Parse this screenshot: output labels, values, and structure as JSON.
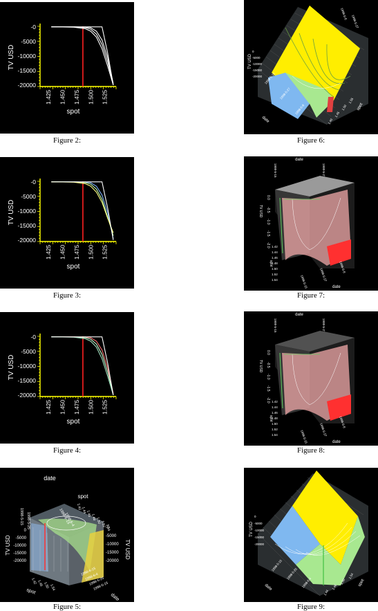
{
  "figures": [
    {
      "caption": "Figure 2:",
      "kind": "2d",
      "chart_data": {
        "type": "line",
        "xlabel": "spot",
        "ylabel": "TV USD",
        "xticks": [
          "1.425",
          "1.450",
          "1.475",
          "1.500",
          "1.525"
        ],
        "yticks": [
          "-0",
          "-5000",
          "-10000",
          "-15000",
          "-20000"
        ],
        "xlim": [
          1.41,
          1.545
        ],
        "ylim": [
          -20500,
          200
        ],
        "strike": 1.486,
        "series_colors": [
          "#ffffff",
          "#ffffff",
          "#ffffff",
          "#ffffff"
        ],
        "strike_color": "#ff2020",
        "axis_color": "#ffff00",
        "series": [
          {
            "x": [
              1.43,
              1.45,
              1.47,
              1.49,
              1.5,
              1.51,
              1.52,
              1.53,
              1.54
            ],
            "y": [
              0,
              0,
              0,
              -50,
              -300,
              -1500,
              -4500,
              -10500,
              -19500
            ]
          },
          {
            "x": [
              1.43,
              1.45,
              1.47,
              1.49,
              1.5,
              1.51,
              1.52,
              1.53,
              1.54
            ],
            "y": [
              0,
              0,
              -30,
              -250,
              -800,
              -2500,
              -6000,
              -12000,
              -20000
            ]
          },
          {
            "x": [
              1.43,
              1.45,
              1.47,
              1.49,
              1.5,
              1.51,
              1.52,
              1.53,
              1.54
            ],
            "y": [
              0,
              -10,
              -120,
              -600,
              -1500,
              -3500,
              -7500,
              -13500,
              -20000
            ]
          },
          {
            "x": [
              1.43,
              1.45,
              1.47,
              1.49,
              1.5,
              1.51,
              1.52,
              1.53,
              1.54
            ],
            "y": [
              0,
              0,
              0,
              0,
              0,
              0,
              0,
              -9000,
              -20000
            ]
          }
        ]
      }
    },
    {
      "caption": "Figure 3:",
      "kind": "2d",
      "chart_data": {
        "type": "line",
        "xlabel": "spot",
        "ylabel": "TV USD",
        "xticks": [
          "1.425",
          "1.450",
          "1.475",
          "1.500",
          "1.525"
        ],
        "yticks": [
          "-0",
          "-5000",
          "-10000",
          "-15000",
          "-20000"
        ],
        "xlim": [
          1.41,
          1.545
        ],
        "ylim": [
          -20500,
          200
        ],
        "strike": 1.486,
        "series_colors": [
          "#7fb3ff",
          "#c8ffb0",
          "#ffff80",
          "#ffffff"
        ],
        "strike_color": "#ff2020",
        "axis_color": "#ffff00",
        "series": [
          {
            "x": [
              1.43,
              1.45,
              1.47,
              1.49,
              1.5,
              1.51,
              1.52,
              1.53,
              1.54
            ],
            "y": [
              0,
              0,
              0,
              -50,
              -300,
              -1500,
              -4500,
              -10500,
              -19500
            ]
          },
          {
            "x": [
              1.43,
              1.45,
              1.47,
              1.49,
              1.5,
              1.51,
              1.52,
              1.53,
              1.54
            ],
            "y": [
              0,
              0,
              -30,
              -250,
              -800,
              -2500,
              -6000,
              -12000,
              -18500
            ]
          },
          {
            "x": [
              1.43,
              1.45,
              1.47,
              1.49,
              1.5,
              1.51,
              1.52,
              1.53,
              1.54
            ],
            "y": [
              0,
              -10,
              -120,
              -600,
              -1500,
              -3500,
              -7000,
              -12500,
              -17500
            ]
          },
          {
            "x": [
              1.43,
              1.45,
              1.47,
              1.49,
              1.5,
              1.51,
              1.52,
              1.53,
              1.54
            ],
            "y": [
              0,
              0,
              0,
              0,
              0,
              0,
              0,
              -9000,
              -20000
            ]
          }
        ]
      }
    },
    {
      "caption": "Figure 4:",
      "kind": "2d",
      "chart_data": {
        "type": "line",
        "xlabel": "spot",
        "ylabel": "TV USD",
        "xticks": [
          "1.425",
          "1.450",
          "1.475",
          "1.500",
          "1.525"
        ],
        "yticks": [
          "-0",
          "-5000",
          "-10000",
          "-15000",
          "-20000"
        ],
        "xlim": [
          1.41,
          1.545
        ],
        "ylim": [
          -20500,
          200
        ],
        "strike": 1.486,
        "series_colors": [
          "#ff7070",
          "#c8ffd0",
          "#a0e0c0",
          "#ffffff"
        ],
        "strike_color": "#ff2020",
        "axis_color": "#ffff00",
        "series": [
          {
            "x": [
              1.43,
              1.45,
              1.47,
              1.49,
              1.5,
              1.51,
              1.52,
              1.53,
              1.54
            ],
            "y": [
              0,
              0,
              0,
              -50,
              -300,
              -1500,
              -4500,
              -10500,
              -19500
            ]
          },
          {
            "x": [
              1.43,
              1.45,
              1.47,
              1.49,
              1.5,
              1.51,
              1.52,
              1.53,
              1.54
            ],
            "y": [
              0,
              0,
              -30,
              -250,
              -800,
              -2500,
              -6000,
              -12000,
              -20000
            ]
          },
          {
            "x": [
              1.43,
              1.45,
              1.47,
              1.49,
              1.5,
              1.51,
              1.52,
              1.53,
              1.54
            ],
            "y": [
              0,
              -10,
              -120,
              -600,
              -1500,
              -3500,
              -7500,
              -13500,
              -20000
            ]
          },
          {
            "x": [
              1.43,
              1.45,
              1.47,
              1.49,
              1.5,
              1.51,
              1.52,
              1.53,
              1.54
            ],
            "y": [
              0,
              0,
              0,
              0,
              0,
              0,
              0,
              -9000,
              -20000
            ]
          }
        ]
      }
    },
    {
      "caption": "Figure 5:",
      "kind": "3d-box",
      "labels": {
        "date": "date",
        "spot": "spot",
        "tv_left": "TV USD",
        "tv_right": "TV USD",
        "spot_bottom": "spot",
        "date_bottom": "date",
        "yticks": [
          "0",
          "-5000",
          "-10000",
          "-15000",
          "-20000"
        ],
        "yticks_right": [
          "-0",
          "-5000",
          "-10000",
          "-15000",
          "-20000"
        ],
        "dates_top": [
          "1998-5-15",
          "1998-5-25"
        ],
        "dates_top2": [
          "1998-6-15",
          "1998-6-4"
        ],
        "spots_top": [
          "1.42",
          "1.44",
          "1.46",
          "1.48",
          "1.50",
          "1.52",
          "1.54"
        ],
        "spots_bottom": [
          "1.42",
          "1.46",
          "1.50",
          "1.54"
        ],
        "dates_bottom": [
          "1998-6-15",
          "1998-6-4",
          "1998-5-25",
          "1998-5-15"
        ]
      },
      "colors": {
        "blue": "#8fb8e8",
        "green": "#a8e08c",
        "yellow": "#e8d040",
        "red": "#ff3030"
      }
    },
    {
      "caption": "Figure 6:",
      "kind": "3d-surface",
      "labels": {
        "tv": "TV USD",
        "date": "date",
        "spot": "spot",
        "zticks": [
          "-20000",
          "-15000",
          "-10000",
          "-5000",
          "0"
        ],
        "dates": [
          "1998-5-15",
          "1998-5-27",
          "1998-6-8"
        ],
        "spots": [
          "1.40",
          "1.45",
          "1.50",
          "1.55"
        ],
        "top_dates": [
          "1998-6-8",
          "1998-5-27"
        ]
      },
      "colors": {
        "blue": "#7fb8f0",
        "green": "#a8e890",
        "yellow": "#ffee00",
        "red": "#e04040"
      }
    },
    {
      "caption": "Figure 7:",
      "kind": "3d-red",
      "labels": {
        "date_top": "date",
        "date_bottom": "date",
        "tv": "TV USD",
        "spot": "spot",
        "tv_ticks": [
          "0.0",
          "-0.5",
          "-1.0",
          "-1.5",
          "-2.0"
        ],
        "spot_ticks": [
          "1.42",
          "1.44",
          "1.46",
          "1.48",
          "1.50",
          "1.52",
          "1.54"
        ],
        "dates_top": [
          "1998-5-15",
          "1998-5-27"
        ],
        "dates_bottom": [
          "1998-5-15",
          "1998-5-27",
          "1998-6-8"
        ]
      },
      "colors": {
        "red": "#ff3030",
        "pink": "#f0a8a8",
        "grey": "#b0b0b0",
        "green": "#60d060"
      }
    },
    {
      "caption": "Figure 8:",
      "kind": "3d-red",
      "labels": {
        "date_top": "date",
        "date_bottom": "date",
        "tv": "TV USD",
        "spot": "spot",
        "tv_ticks": [
          "0.0",
          "-0.5",
          "-1.0",
          "-1.5",
          "-2.0"
        ],
        "spot_ticks": [
          "1.42",
          "1.44",
          "1.46",
          "1.48",
          "1.50",
          "1.52",
          "1.54"
        ],
        "dates_top": [
          "1998-5-15",
          "1998-5-27"
        ],
        "dates_bottom": [
          "1998-5-15",
          "1998-5-27",
          "1998-6-8"
        ]
      },
      "colors": {
        "red": "#ff3030",
        "pink": "#f0a8a8",
        "grey": "#5a5a5a",
        "green": "#60d060"
      }
    },
    {
      "caption": "Figure 9:",
      "kind": "3d-surface2",
      "labels": {
        "tv": "TV USD",
        "date": "date",
        "spot": "spot",
        "zticks": [
          "-20000",
          "-15000",
          "-10000",
          "-5000",
          "0"
        ],
        "dates": [
          "1998-5-15",
          "1998-5-25",
          "1998-6-4"
        ],
        "spots": [
          "1.44",
          "1.46",
          "1.50",
          "1.54"
        ]
      },
      "colors": {
        "blue": "#7fb8f0",
        "green": "#a8e890",
        "yellow": "#ffee00"
      }
    }
  ]
}
